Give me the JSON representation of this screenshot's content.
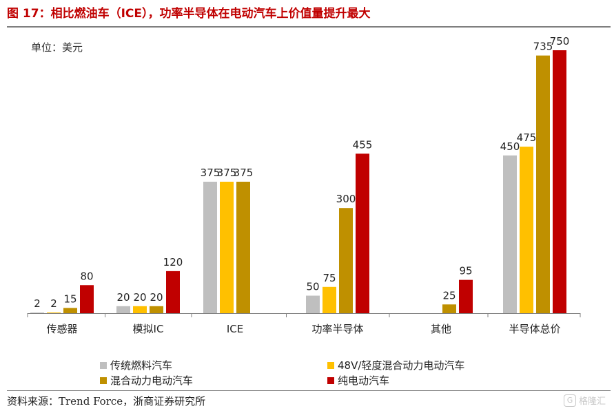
{
  "header": {
    "title": "图 17：相比燃油车（ICE），功率半导体在电动汽车上价值量提升最大"
  },
  "unit_label": "单位：美元",
  "chart_data": {
    "type": "bar",
    "categories": [
      "传感器",
      "模拟IC",
      "ICE",
      "功率半导体",
      "其他",
      "半导体总价"
    ],
    "series": [
      {
        "name": "传统燃料汽车",
        "color": "#bfbfbf",
        "values": [
          2,
          20,
          375,
          50,
          null,
          450
        ]
      },
      {
        "name": "48V/轻度混合动力电动汽车",
        "color": "#ffc000",
        "values": [
          2,
          20,
          375,
          75,
          null,
          475
        ]
      },
      {
        "name": "混合动力电动汽车",
        "color": "#bf9000",
        "values": [
          15,
          20,
          375,
          300,
          25,
          735
        ]
      },
      {
        "name": "纯电动汽车",
        "color": "#c00000",
        "values": [
          80,
          120,
          null,
          455,
          95,
          750
        ]
      }
    ],
    "ylim": [
      0,
      750
    ],
    "grid": false,
    "legend_position": "bottom"
  },
  "footer": {
    "source": "资料来源：Trend Force，浙商证券研究所",
    "watermark_logo": "G",
    "watermark_text": "格隆汇"
  }
}
